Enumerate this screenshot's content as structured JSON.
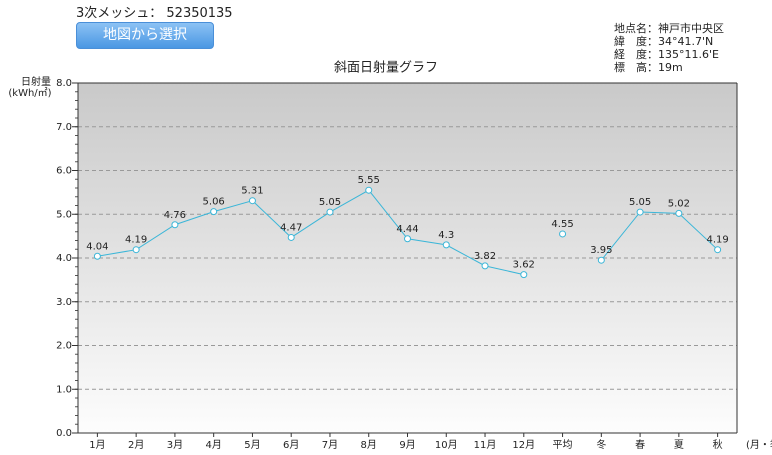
{
  "header": {
    "mesh": "3次メッシュ： 52350135",
    "button": "地図から選択",
    "info": [
      "地点名：神戸市中央区",
      "緯　度：34°41.7'N",
      "経　度：135°11.6'E",
      "標　高：19m"
    ]
  },
  "chart_data": {
    "type": "line",
    "title": "斜面日射量グラフ",
    "y_label": "日射量",
    "y_unit": "(kWh/㎡)",
    "x_label": "(月・季)",
    "categories": [
      "1月",
      "2月",
      "3月",
      "4月",
      "5月",
      "6月",
      "7月",
      "8月",
      "9月",
      "10月",
      "11月",
      "12月",
      "平均",
      "冬",
      "春",
      "夏",
      "秋"
    ],
    "values": [
      4.04,
      4.19,
      4.76,
      5.06,
      5.31,
      4.47,
      5.05,
      5.55,
      4.44,
      4.3,
      3.82,
      3.62,
      4.55,
      3.95,
      5.05,
      5.02,
      4.19
    ],
    "color": "#3bb6d8",
    "ylim": [
      0,
      8
    ],
    "yticks": [
      {
        "value": 0,
        "label": "0.0"
      },
      {
        "value": 1,
        "label": "1.0"
      },
      {
        "value": 2,
        "label": "2.0"
      },
      {
        "value": 3,
        "label": "3.0"
      },
      {
        "value": 4,
        "label": "4.0"
      },
      {
        "value": 5,
        "label": "5.0"
      },
      {
        "value": 6,
        "label": "6.0"
      },
      {
        "value": 7,
        "label": "7.0"
      },
      {
        "value": 8,
        "label": "8.0"
      }
    ],
    "grid": true
  }
}
